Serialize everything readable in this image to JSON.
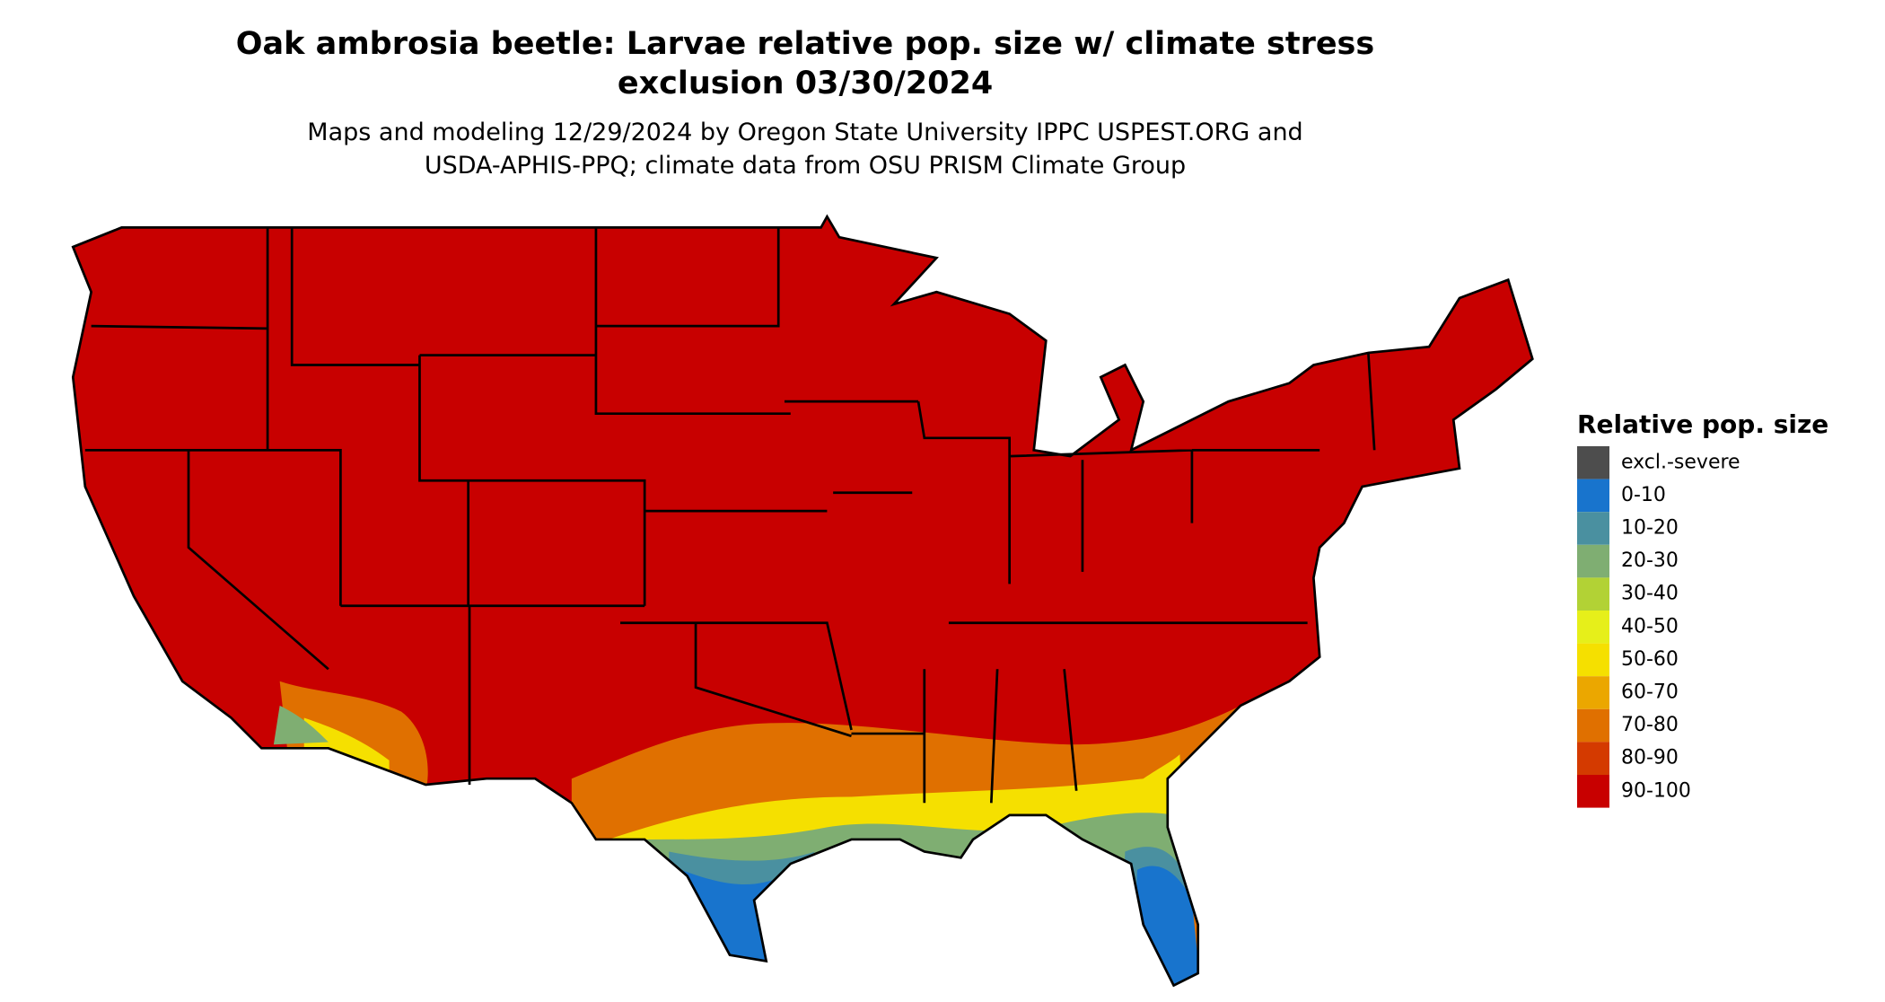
{
  "title_lines": [
    "Oak ambrosia beetle: Larvae relative pop. size w/ climate stress",
    "exclusion 03/30/2024"
  ],
  "subtitle_lines": [
    "Maps and modeling 12/29/2024 by Oregon State University IPPC USPEST.ORG and",
    "USDA-APHIS-PPQ; climate data from OSU PRISM Climate Group"
  ],
  "legend": {
    "title": "Relative pop. size",
    "items": [
      {
        "label": "excl.-severe",
        "color": "#4d4d4d"
      },
      {
        "label": "0-10",
        "color": "#1874cd"
      },
      {
        "label": "10-20",
        "color": "#4a90a0"
      },
      {
        "label": "20-30",
        "color": "#7fae72"
      },
      {
        "label": "30-40",
        "color": "#b2d235"
      },
      {
        "label": "40-50",
        "color": "#e6ef1a"
      },
      {
        "label": "50-60",
        "color": "#f5e000"
      },
      {
        "label": "60-70",
        "color": "#eba700"
      },
      {
        "label": "70-80",
        "color": "#e07000"
      },
      {
        "label": "80-90",
        "color": "#d43a00"
      },
      {
        "label": "90-100",
        "color": "#c80000"
      }
    ]
  }
}
